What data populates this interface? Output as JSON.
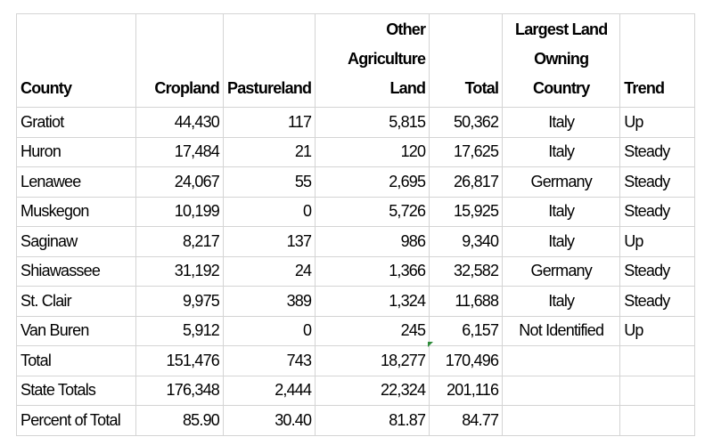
{
  "table": {
    "header": [
      [
        "County"
      ],
      [
        "Cropland"
      ],
      [
        "Pastureland"
      ],
      [
        "Other",
        "Agriculture",
        "Land"
      ],
      [
        "Total"
      ],
      [
        "Largest Land",
        "Owning",
        "Country"
      ],
      [
        "Trend"
      ]
    ],
    "rows": [
      [
        "Gratiot",
        "44,430",
        "117",
        "5,815",
        "50,362",
        "Italy",
        "Up"
      ],
      [
        "Huron",
        "17,484",
        "21",
        "120",
        "17,625",
        "Italy",
        "Steady"
      ],
      [
        "Lenawee",
        "24,067",
        "55",
        "2,695",
        "26,817",
        "Germany",
        "Steady"
      ],
      [
        "Muskegon",
        "10,199",
        "0",
        "5,726",
        "15,925",
        "Italy",
        "Steady"
      ],
      [
        "Saginaw",
        "8,217",
        "137",
        "986",
        "9,340",
        "Italy",
        "Up"
      ],
      [
        "Shiawassee",
        "31,192",
        "24",
        "1,366",
        "32,582",
        "Germany",
        "Steady"
      ],
      [
        "St. Clair",
        "9,975",
        "389",
        "1,324",
        "11,688",
        "Italy",
        "Steady"
      ],
      [
        "Van Buren",
        "5,912",
        "0",
        "245",
        "6,157",
        "Not Identified",
        "Up"
      ],
      [
        "Total",
        "151,476",
        "743",
        "18,277",
        "170,496",
        null,
        null
      ],
      [
        "State Totals",
        "176,348",
        "2,444",
        "22,324",
        "201,116",
        null,
        null
      ],
      [
        "Percent of Total",
        "85.90",
        "30.40",
        "81.87",
        "84.77",
        null,
        null
      ]
    ]
  }
}
